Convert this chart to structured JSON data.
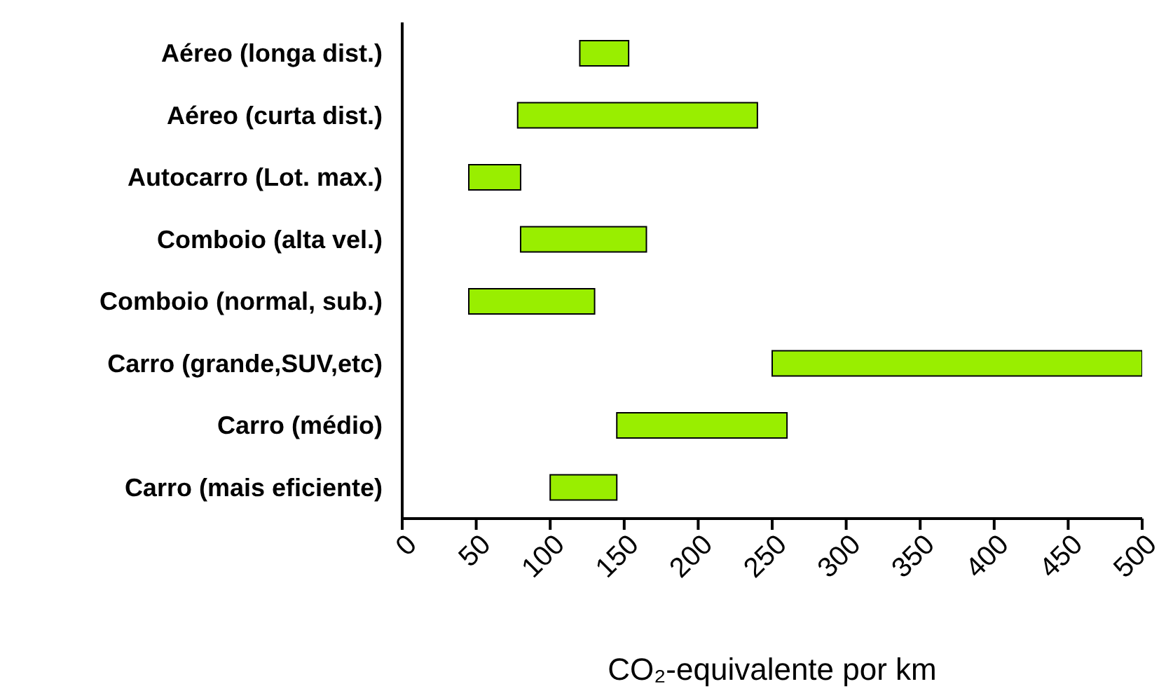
{
  "chart_data": {
    "type": "bar",
    "orientation": "horizontal",
    "xlabel": "CO₂-equivalente  por km",
    "categories": [
      "Aéreo (longa dist.)",
      "Aéreo (curta dist.)",
      "Autocarro (Lot. max.)",
      "Comboio (alta vel.)",
      "Comboio (normal, sub.)",
      "Carro (grande,SUV,etc)",
      "Carro (médio)",
      "Carro (mais eficiente)"
    ],
    "base": [
      120,
      78,
      45,
      80,
      45,
      250,
      145,
      100
    ],
    "values": [
      33,
      162,
      35,
      85,
      85,
      250,
      115,
      45
    ],
    "color": "#99ee00",
    "xlim": [
      0,
      500
    ],
    "xticks": [
      0,
      50,
      100,
      150,
      200,
      250,
      300,
      350,
      400,
      450,
      500
    ],
    "grid": false,
    "legend": false
  }
}
